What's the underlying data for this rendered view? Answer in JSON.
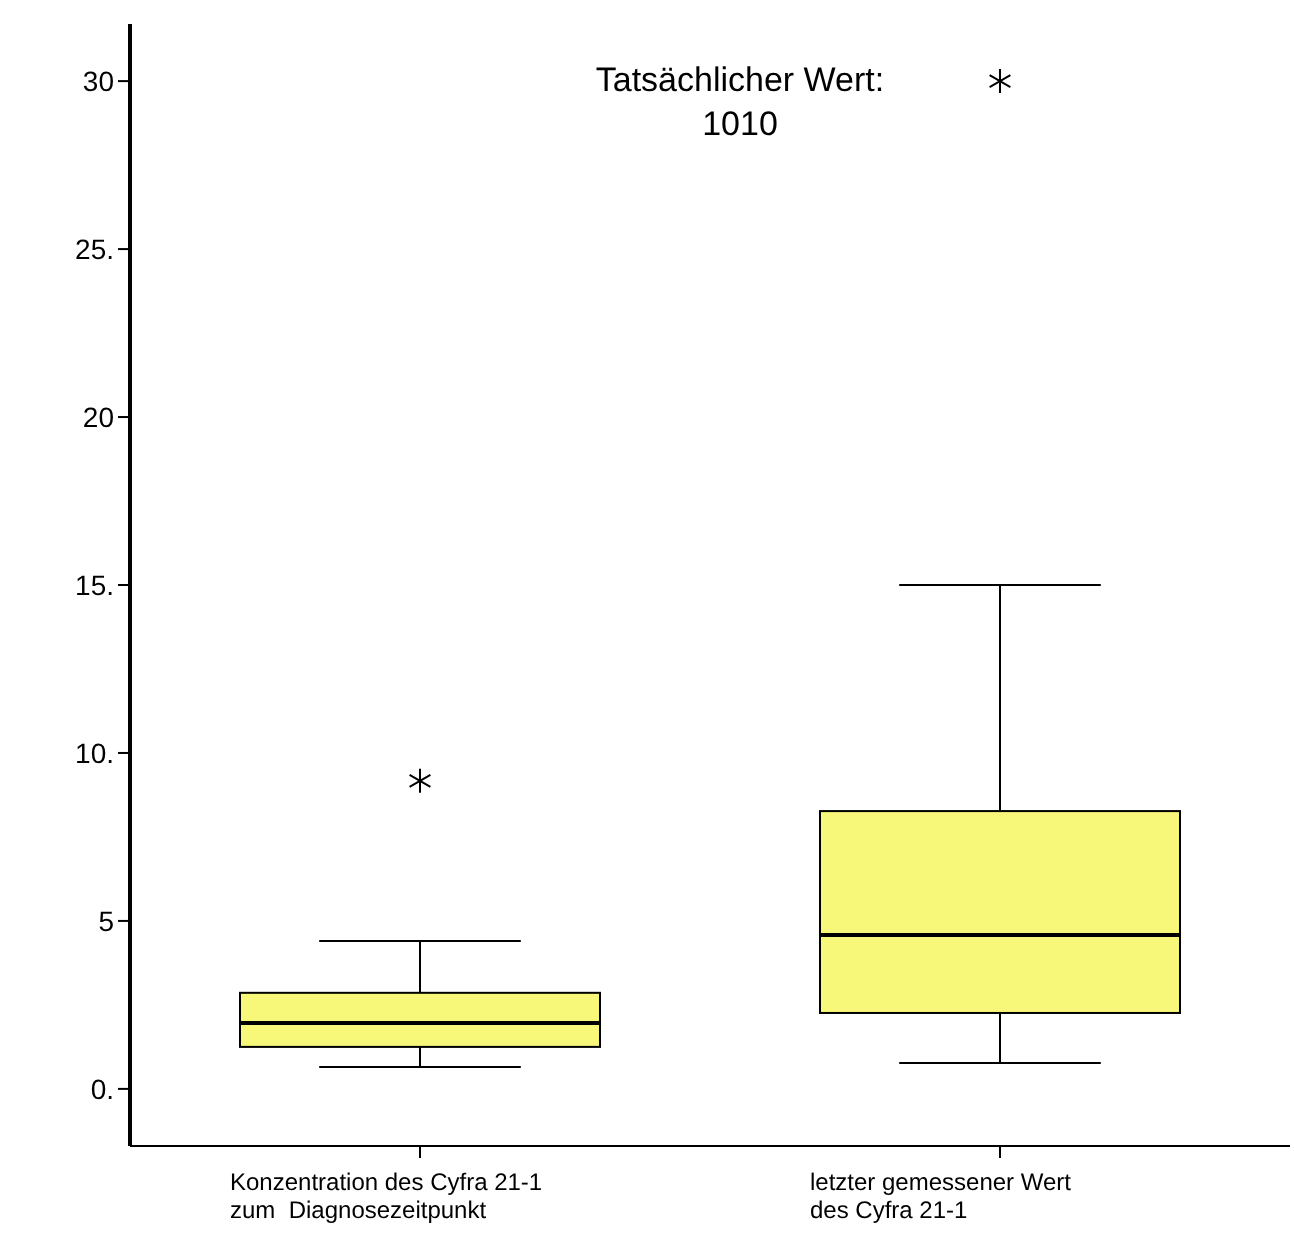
{
  "chart_data": {
    "type": "box",
    "categories": [
      "Konzentration des Cyfra 21-1\nzum  Diagnosezeitpunkt",
      "letzter gemessener Wert\ndes Cyfra 21-1"
    ],
    "boxes": [
      {
        "low": 0.65,
        "q1": 1.25,
        "median": 1.96,
        "q3": 2.86,
        "high": 4.4,
        "outliers": [
          9.17
        ]
      },
      {
        "low": 0.77,
        "q1": 2.26,
        "median": 4.58,
        "q3": 8.27,
        "high": 15.0,
        "outliers": [
          30
        ]
      }
    ],
    "color": "#f7f77a",
    "marker": "star",
    "ylim": [
      -1.7,
      31.7
    ],
    "yticks": [
      {
        "value": 0,
        "label": "0."
      },
      5,
      {
        "value": 10,
        "label": "10."
      },
      {
        "value": 15,
        "label": "15."
      },
      20,
      {
        "value": 25,
        "label": "25."
      },
      30
    ],
    "annotations": [
      "Tatsächlicher Wert:\n1010"
    ],
    "grid": false,
    "legend": false
  }
}
